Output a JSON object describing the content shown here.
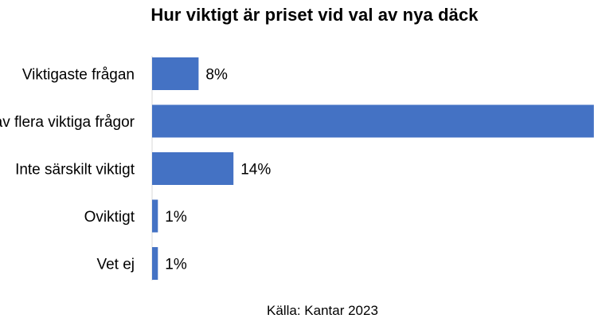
{
  "chart_data": {
    "type": "bar",
    "orientation": "horizontal",
    "title": "Hur viktigt är priset vid val av nya däck",
    "categories": [
      "Viktigaste frågan",
      "En av flera viktiga frågor",
      "Inte särskilt viktigt",
      "Oviktigt",
      "Vet ej"
    ],
    "values": [
      8,
      76,
      14,
      1,
      1
    ],
    "value_labels": [
      "8%",
      "",
      "14%",
      "1%",
      "1%"
    ],
    "unit": "%",
    "xlim": [
      0,
      100
    ],
    "grid": false,
    "legend": "none",
    "bar_color": "#4472c4"
  },
  "source": "Källa: Kantar 2023"
}
